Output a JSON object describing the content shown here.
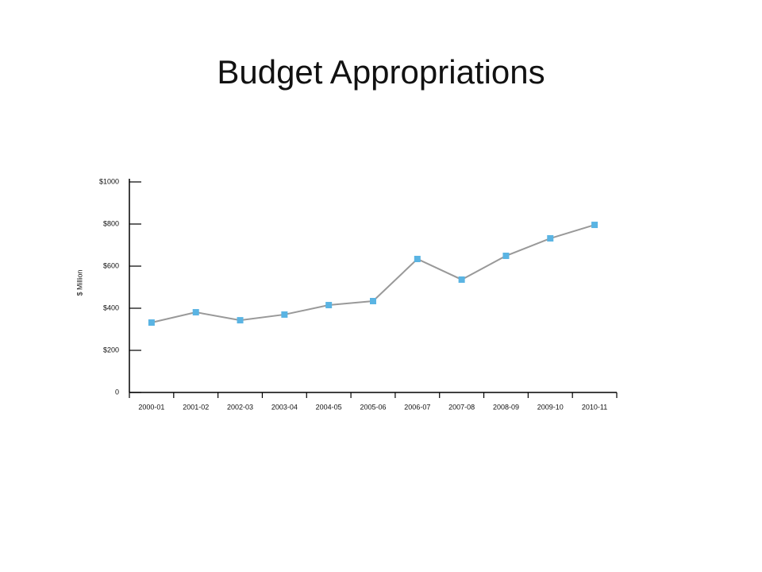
{
  "chart_data": {
    "type": "line",
    "title": "Budget Appropriations",
    "ylabel": "$ Million",
    "categories": [
      "2000-01",
      "2001-02",
      "2002-03",
      "2003-04",
      "2004-05",
      "2005-06",
      "2006-07",
      "2007-08",
      "2008-09",
      "2009-10",
      "2010-11"
    ],
    "values": [
      332,
      381,
      343,
      370,
      415,
      434,
      634,
      536,
      649,
      732,
      796
    ],
    "color": "#5ab4e3",
    "line_color": "#999999",
    "ylim": [
      0,
      1000
    ],
    "yticks": [
      0,
      {
        "value": 200,
        "label": "$200"
      },
      {
        "value": 400,
        "label": "$400"
      },
      {
        "value": 600,
        "label": "$600"
      },
      {
        "value": 800,
        "label": "$800"
      },
      {
        "value": 1000,
        "label": "$1000"
      }
    ],
    "grid": false
  }
}
